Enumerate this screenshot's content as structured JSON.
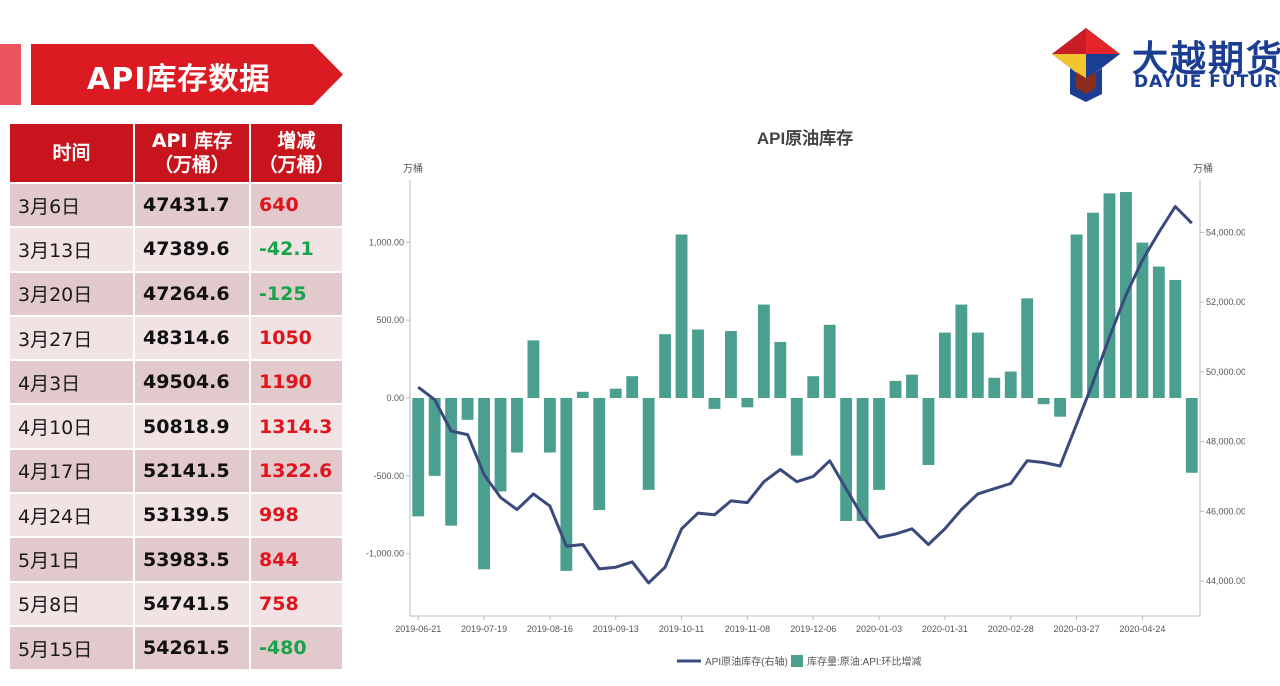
{
  "header": {
    "title": "API库存数据",
    "logo_cn": "大越期货",
    "logo_en": "DAYUE FUTURES"
  },
  "colors": {
    "banner_red": "#db1a22",
    "table_header_red": "#c8141c",
    "positive": "#e0141c",
    "negative": "#19a34a",
    "bar_teal": "#4a9f8f",
    "line_navy": "#3b4a7d"
  },
  "table": {
    "headers": [
      "时间",
      "API 库存\n（万桶）",
      "增减\n（万桶）"
    ],
    "rows": [
      {
        "date": "3月6日",
        "stock": "47431.7",
        "change": "640",
        "sign": "pos"
      },
      {
        "date": "3月13日",
        "stock": "47389.6",
        "change": "-42.1",
        "sign": "neg"
      },
      {
        "date": "3月20日",
        "stock": "47264.6",
        "change": "-125",
        "sign": "neg"
      },
      {
        "date": "3月27日",
        "stock": "48314.6",
        "change": "1050",
        "sign": "pos"
      },
      {
        "date": "4月3日",
        "stock": "49504.6",
        "change": "1190",
        "sign": "pos"
      },
      {
        "date": "4月10日",
        "stock": "50818.9",
        "change": "1314.3",
        "sign": "pos"
      },
      {
        "date": "4月17日",
        "stock": "52141.5",
        "change": "1322.6",
        "sign": "pos"
      },
      {
        "date": "4月24日",
        "stock": "53139.5",
        "change": "998",
        "sign": "pos"
      },
      {
        "date": "5月1日",
        "stock": "53983.5",
        "change": "844",
        "sign": "pos"
      },
      {
        "date": "5月8日",
        "stock": "54741.5",
        "change": "758",
        "sign": "pos"
      },
      {
        "date": "5月15日",
        "stock": "54261.5",
        "change": "-480",
        "sign": "neg"
      }
    ]
  },
  "chart_data": {
    "type": "bar",
    "title": "API原油库存",
    "left_unit": "万桶",
    "right_unit": "万桶",
    "ylim_left": [
      -1400,
      1400
    ],
    "ylim_right": [
      43000,
      55500
    ],
    "left_ticks": [
      -1000,
      -500,
      0,
      500,
      1000
    ],
    "left_tick_labels": [
      "-1,000.00",
      "-500.00",
      "0.00",
      "500.00",
      "1,000.00"
    ],
    "right_ticks": [
      44000,
      46000,
      48000,
      50000,
      52000,
      54000
    ],
    "right_tick_labels": [
      "44,000.00",
      "46,000.00",
      "48,000.00",
      "50,000.00",
      "52,000.00",
      "54,000.00"
    ],
    "x_tick_labels": [
      "2019-06-21",
      "2019-07-19",
      "2019-08-16",
      "2019-09-13",
      "2019-10-11",
      "2019-11-08",
      "2019-12-06",
      "2020-01-03",
      "2020-01-31",
      "2020-02-28",
      "2020-03-27",
      "2020-04-24"
    ],
    "x_tick_positions": [
      0,
      4,
      8,
      12,
      16,
      20,
      24,
      28,
      32,
      36,
      40,
      44
    ],
    "n_points": 48,
    "legend": [
      "API原油库存(右轴)",
      "库存量:原油:API:环比增减"
    ],
    "legend_position": "bottom",
    "series": [
      {
        "name": "库存量:原油:API:环比增减",
        "type": "bar",
        "axis": "left",
        "values": [
          -760,
          -500,
          -820,
          -140,
          -1100,
          -600,
          -350,
          370,
          -350,
          -1110,
          40,
          -720,
          60,
          140,
          -590,
          410,
          1050,
          440,
          -70,
          430,
          -60,
          600,
          360,
          -370,
          140,
          470,
          -790,
          -790,
          -590,
          110,
          150,
          -430,
          420,
          600,
          420,
          130,
          170,
          640,
          -40,
          -120,
          1050,
          1190,
          1314.3,
          1322.6,
          998,
          844,
          758,
          -480
        ]
      },
      {
        "name": "API原油库存(右轴)",
        "type": "line",
        "axis": "right",
        "values": [
          49560,
          49200,
          48300,
          48200,
          47050,
          46400,
          46050,
          46500,
          46150,
          45000,
          45050,
          44350,
          44400,
          44550,
          43950,
          44400,
          45500,
          45950,
          45900,
          46300,
          46250,
          46850,
          47200,
          46850,
          47000,
          47450,
          46650,
          45850,
          45250,
          45350,
          45500,
          45050,
          45500,
          46050,
          46500,
          46650,
          46800,
          47450,
          47400,
          47300,
          48500,
          49700,
          51000,
          52200,
          53200,
          54000,
          54741.5,
          54261.5
        ]
      }
    ]
  }
}
